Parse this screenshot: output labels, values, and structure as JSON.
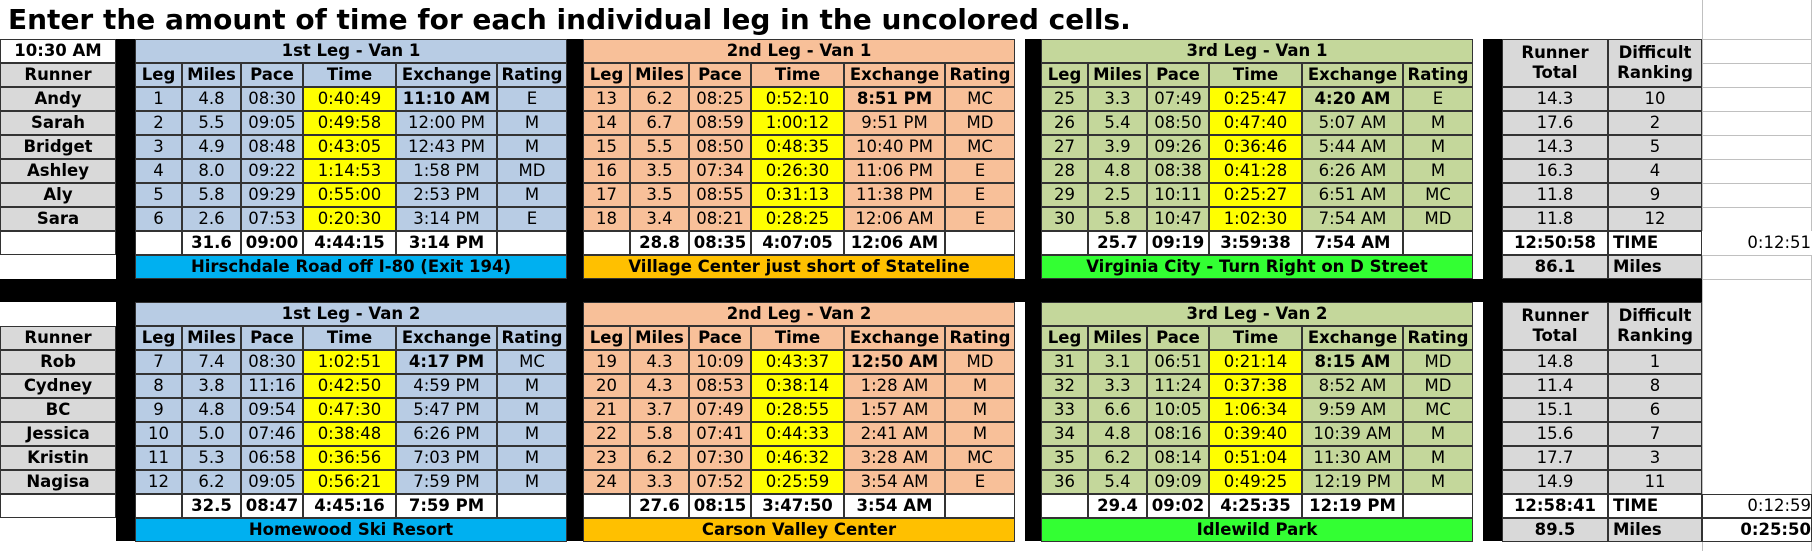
{
  "page": {
    "title": "Enter the amount of time for each individual leg in the uncolored cells."
  },
  "start_time": "10:30 AM",
  "column_headers": [
    "Leg",
    "Miles",
    "Pace",
    "Time",
    "Exchange",
    "Rating"
  ],
  "runner_header": "Runner",
  "runner_total_header": [
    "Runner",
    "Total"
  ],
  "difficult_ranking_header": [
    "Difficult",
    "Ranking"
  ],
  "time_label": "TIME",
  "miles_label": "Miles",
  "vans": [
    {
      "runners": [
        "Andy",
        "Sarah",
        "Bridget",
        "Ashley",
        "Aly",
        "Sara"
      ],
      "runner_totals": [
        "14.3",
        "17.6",
        "14.3",
        "16.3",
        "11.8",
        "11.8"
      ],
      "difficult_ranking": [
        "10",
        "2",
        "5",
        "4",
        "9",
        "12"
      ],
      "legs": [
        {
          "title": "1st Leg - Van 1",
          "rows": [
            [
              "1",
              "4.8",
              "08:30",
              "0:40:49",
              "11:10 AM",
              "E"
            ],
            [
              "2",
              "5.5",
              "09:05",
              "0:49:58",
              "12:00 PM",
              "M"
            ],
            [
              "3",
              "4.9",
              "08:48",
              "0:43:05",
              "12:43 PM",
              "M"
            ],
            [
              "4",
              "8.0",
              "09:22",
              "1:14:53",
              "1:58 PM",
              "MD"
            ],
            [
              "5",
              "5.8",
              "09:29",
              "0:55:00",
              "2:53 PM",
              "M"
            ],
            [
              "6",
              "2.6",
              "07:53",
              "0:20:30",
              "3:14 PM",
              "E"
            ]
          ],
          "totals": {
            "miles": "31.6",
            "pace": "09:00",
            "time": "4:44:15",
            "exchange": "3:14 PM"
          },
          "location": "Hirschdale Road off I-80 (Exit 194)"
        },
        {
          "title": "2nd Leg - Van 1",
          "rows": [
            [
              "13",
              "6.2",
              "08:25",
              "0:52:10",
              "8:51 PM",
              "MC"
            ],
            [
              "14",
              "6.7",
              "08:59",
              "1:00:12",
              "9:51 PM",
              "MD"
            ],
            [
              "15",
              "5.5",
              "08:50",
              "0:48:35",
              "10:40 PM",
              "MC"
            ],
            [
              "16",
              "3.5",
              "07:34",
              "0:26:30",
              "11:06 PM",
              "E"
            ],
            [
              "17",
              "3.5",
              "08:55",
              "0:31:13",
              "11:38 PM",
              "E"
            ],
            [
              "18",
              "3.4",
              "08:21",
              "0:28:25",
              "12:06 AM",
              "E"
            ]
          ],
          "totals": {
            "miles": "28.8",
            "pace": "08:35",
            "time": "4:07:05",
            "exchange": "12:06 AM"
          },
          "location": "Village Center just short of Stateline"
        },
        {
          "title": "3rd Leg - Van 1",
          "rows": [
            [
              "25",
              "3.3",
              "07:49",
              "0:25:47",
              "4:20 AM",
              "E"
            ],
            [
              "26",
              "5.4",
              "08:50",
              "0:47:40",
              "5:07 AM",
              "M"
            ],
            [
              "27",
              "3.9",
              "09:26",
              "0:36:46",
              "5:44 AM",
              "M"
            ],
            [
              "28",
              "4.8",
              "08:38",
              "0:41:28",
              "6:26 AM",
              "M"
            ],
            [
              "29",
              "2.5",
              "10:11",
              "0:25:27",
              "6:51 AM",
              "MC"
            ],
            [
              "30",
              "5.8",
              "10:47",
              "1:02:30",
              "7:54 AM",
              "MD"
            ]
          ],
          "totals": {
            "miles": "25.7",
            "pace": "09:19",
            "time": "3:59:38",
            "exchange": "7:54 AM"
          },
          "location": "Virginia City - Turn Right on D Street"
        }
      ],
      "total_time": "12:50:58",
      "total_miles": "86.1",
      "side_value": "0:12:51"
    },
    {
      "runners": [
        "Rob",
        "Cydney",
        "BC",
        "Jessica",
        "Kristin",
        "Nagisa"
      ],
      "runner_totals": [
        "14.8",
        "11.4",
        "15.1",
        "15.6",
        "17.7",
        "14.9"
      ],
      "difficult_ranking": [
        "1",
        "8",
        "6",
        "7",
        "3",
        "11"
      ],
      "legs": [
        {
          "title": "1st Leg - Van 2",
          "rows": [
            [
              "7",
              "7.4",
              "08:30",
              "1:02:51",
              "4:17 PM",
              "MC"
            ],
            [
              "8",
              "3.8",
              "11:16",
              "0:42:50",
              "4:59 PM",
              "M"
            ],
            [
              "9",
              "4.8",
              "09:54",
              "0:47:30",
              "5:47 PM",
              "M"
            ],
            [
              "10",
              "5.0",
              "07:46",
              "0:38:48",
              "6:26 PM",
              "M"
            ],
            [
              "11",
              "5.3",
              "06:58",
              "0:36:56",
              "7:03 PM",
              "M"
            ],
            [
              "12",
              "6.2",
              "09:05",
              "0:56:21",
              "7:59 PM",
              "M"
            ]
          ],
          "totals": {
            "miles": "32.5",
            "pace": "08:47",
            "time": "4:45:16",
            "exchange": "7:59 PM"
          },
          "location": "Homewood Ski Resort"
        },
        {
          "title": "2nd Leg - Van 2",
          "rows": [
            [
              "19",
              "4.3",
              "10:09",
              "0:43:37",
              "12:50 AM",
              "MD"
            ],
            [
              "20",
              "4.3",
              "08:53",
              "0:38:14",
              "1:28 AM",
              "M"
            ],
            [
              "21",
              "3.7",
              "07:49",
              "0:28:55",
              "1:57 AM",
              "M"
            ],
            [
              "22",
              "5.8",
              "07:41",
              "0:44:33",
              "2:41 AM",
              "M"
            ],
            [
              "23",
              "6.2",
              "07:30",
              "0:46:32",
              "3:28 AM",
              "MC"
            ],
            [
              "24",
              "3.3",
              "07:52",
              "0:25:59",
              "3:54 AM",
              "E"
            ]
          ],
          "totals": {
            "miles": "27.6",
            "pace": "08:15",
            "time": "3:47:50",
            "exchange": "3:54 AM"
          },
          "location": "Carson Valley Center"
        },
        {
          "title": "3rd Leg - Van 2",
          "rows": [
            [
              "31",
              "3.1",
              "06:51",
              "0:21:14",
              "8:15 AM",
              "MD"
            ],
            [
              "32",
              "3.3",
              "11:24",
              "0:37:38",
              "8:52 AM",
              "MD"
            ],
            [
              "33",
              "6.6",
              "10:05",
              "1:06:34",
              "9:59 AM",
              "MC"
            ],
            [
              "34",
              "4.8",
              "08:16",
              "0:39:40",
              "10:39 AM",
              "M"
            ],
            [
              "35",
              "6.2",
              "08:14",
              "0:51:04",
              "11:30 AM",
              "M"
            ],
            [
              "36",
              "5.4",
              "09:09",
              "0:49:25",
              "12:19 PM",
              "M"
            ]
          ],
          "totals": {
            "miles": "29.4",
            "pace": "09:02",
            "time": "4:25:35",
            "exchange": "12:19 PM"
          },
          "location": "Idlewild Park"
        }
      ],
      "total_time": "12:58:41",
      "total_miles": "89.5",
      "side_value": "0:12:59",
      "side_value_2": "0:25:50"
    }
  ],
  "colors": {
    "leg1_fill": "#b8cce4",
    "leg2_fill": "#f8c099",
    "leg3_fill": "#c4d79b",
    "time_fill": "#ffff00",
    "location1_fill": "#00b0f0",
    "location2_fill": "#ffc000",
    "location3_fill": "#33ff33",
    "summary_fill": "#d9d9d9"
  }
}
